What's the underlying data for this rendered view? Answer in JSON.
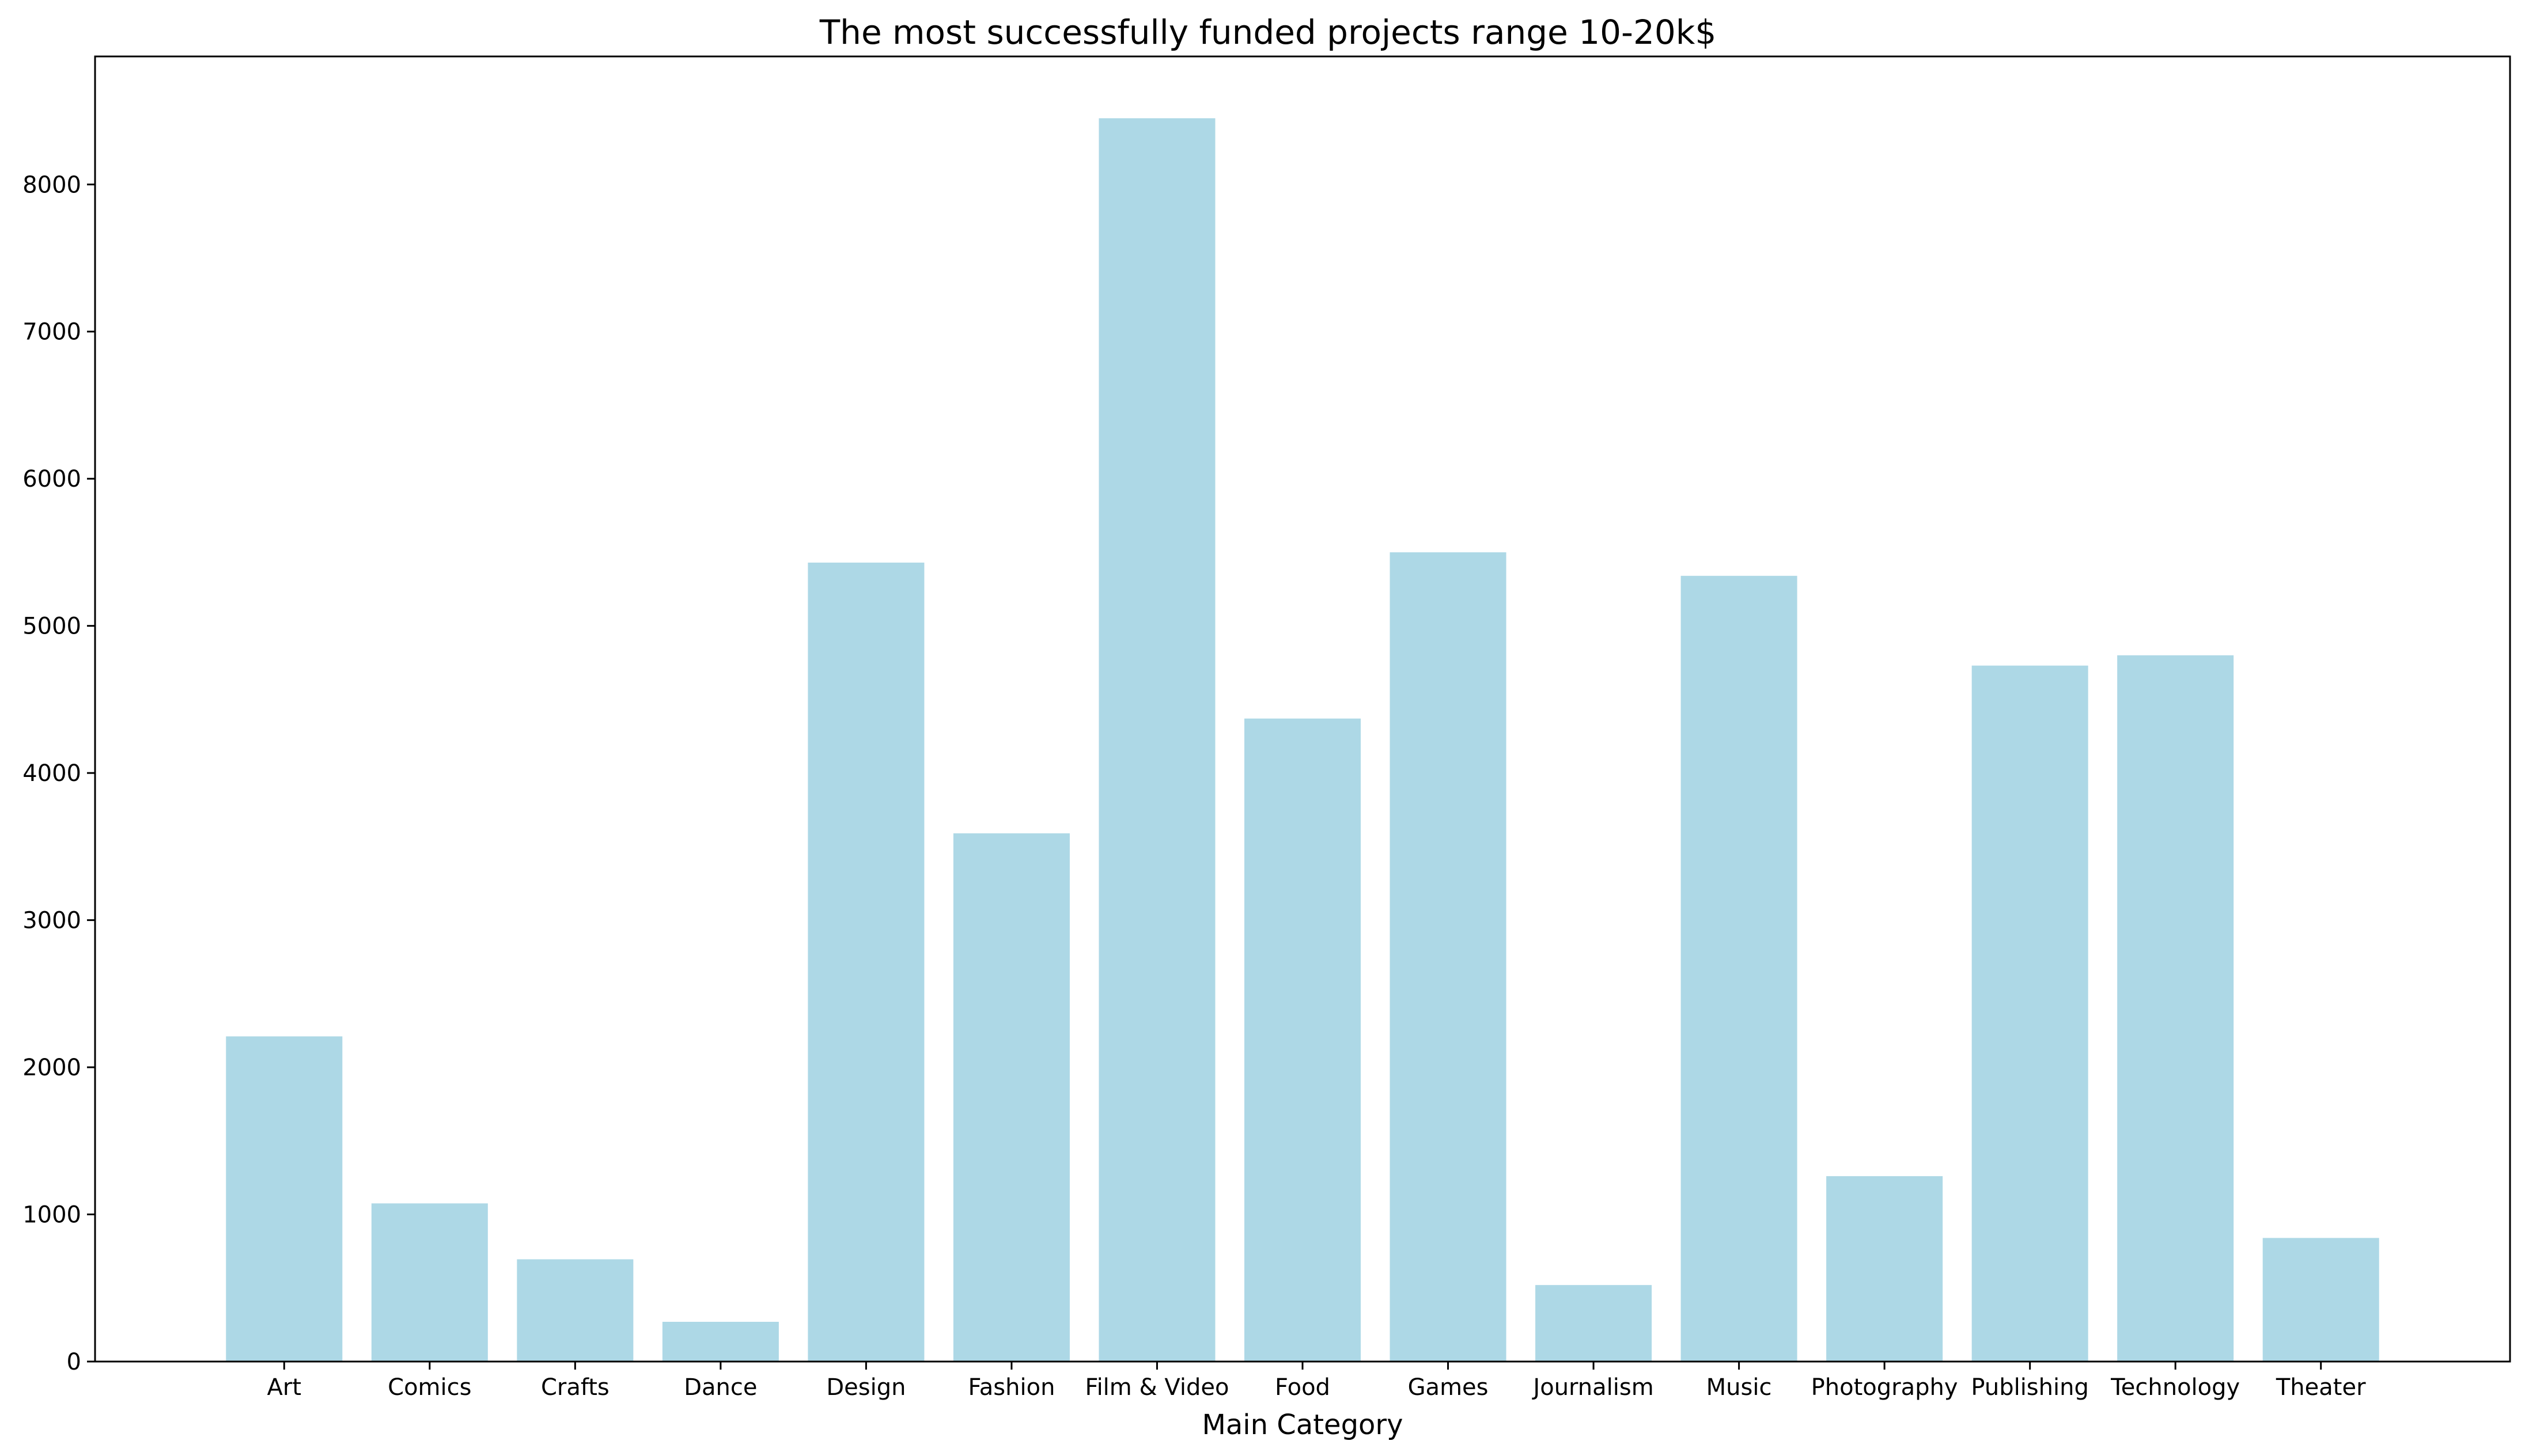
{
  "chart_data": {
    "type": "bar",
    "title": "The most successfully funded projects range 10-20k$",
    "xlabel": "Main Category",
    "ylabel": "",
    "categories": [
      "Art",
      "Comics",
      "Crafts",
      "Dance",
      "Design",
      "Fashion",
      "Film & Video",
      "Food",
      "Games",
      "Journalism",
      "Music",
      "Photography",
      "Publishing",
      "Technology",
      "Theater"
    ],
    "values": [
      2210,
      1075,
      695,
      270,
      5430,
      3590,
      8450,
      4370,
      5500,
      520,
      5340,
      1260,
      4730,
      4800,
      840
    ],
    "ylim": [
      0,
      8870
    ],
    "yticks": [
      0,
      1000,
      2000,
      3000,
      4000,
      5000,
      6000,
      7000,
      8000
    ],
    "bar_color": "#add8e6",
    "grid": false,
    "legend": "none"
  }
}
